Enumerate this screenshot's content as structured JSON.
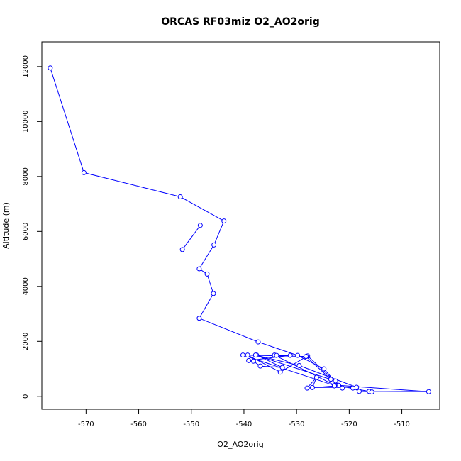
{
  "chart_data": {
    "type": "line",
    "title": "ORCAS RF03miz O2_AO2orig",
    "xlabel": "O2_AO2orig",
    "ylabel": "Altitude (m)",
    "xlim": [
      -578.4,
      -502.8
    ],
    "ylim": [
      -470,
      12900
    ],
    "x_ticks": [
      -570,
      -560,
      -550,
      -540,
      -530,
      -520,
      -510
    ],
    "y_ticks": [
      0,
      2000,
      4000,
      6000,
      8000,
      10000,
      12000
    ],
    "grid": false,
    "legend": "none",
    "line_color": "#0000ff",
    "marker": "open-circle",
    "series": [
      {
        "x": [
          -576.8,
          -570.4,
          -552.1,
          -543.8,
          -545.7,
          -548.5,
          -547.0,
          -545.8,
          -548.5,
          -537.3,
          -529.8,
          -524.8,
          -522.0,
          -504.9,
          -516.2,
          -522.7,
          -534.2,
          -533.8,
          -531.2,
          -539.1,
          -538.2,
          -536.9,
          -532.7,
          -537.6,
          -539.3,
          -533.1,
          -527.9,
          -521.3,
          -540.2,
          -528.2,
          -523.5,
          -522.6,
          -537.8,
          -529.5,
          -518.6,
          -527.0,
          -526.2,
          -528.0,
          -522.8,
          -519.3,
          -518.1,
          -515.7
        ],
        "y": [
          11950,
          8140,
          7260,
          6380,
          5510,
          4640,
          4450,
          3740,
          2840,
          1980,
          1490,
          1000,
          400,
          170,
          180,
          400,
          1500,
          1490,
          1490,
          1300,
          1280,
          1100,
          1050,
          1500,
          1500,
          880,
          1470,
          300,
          1500,
          1450,
          620,
          560,
          1500,
          1120,
          330,
          320,
          690,
          300,
          380,
          300,
          180,
          160
        ]
      },
      {
        "x": [
          -548.3,
          -551.7
        ],
        "y": [
          6220,
          5340
        ]
      }
    ]
  }
}
